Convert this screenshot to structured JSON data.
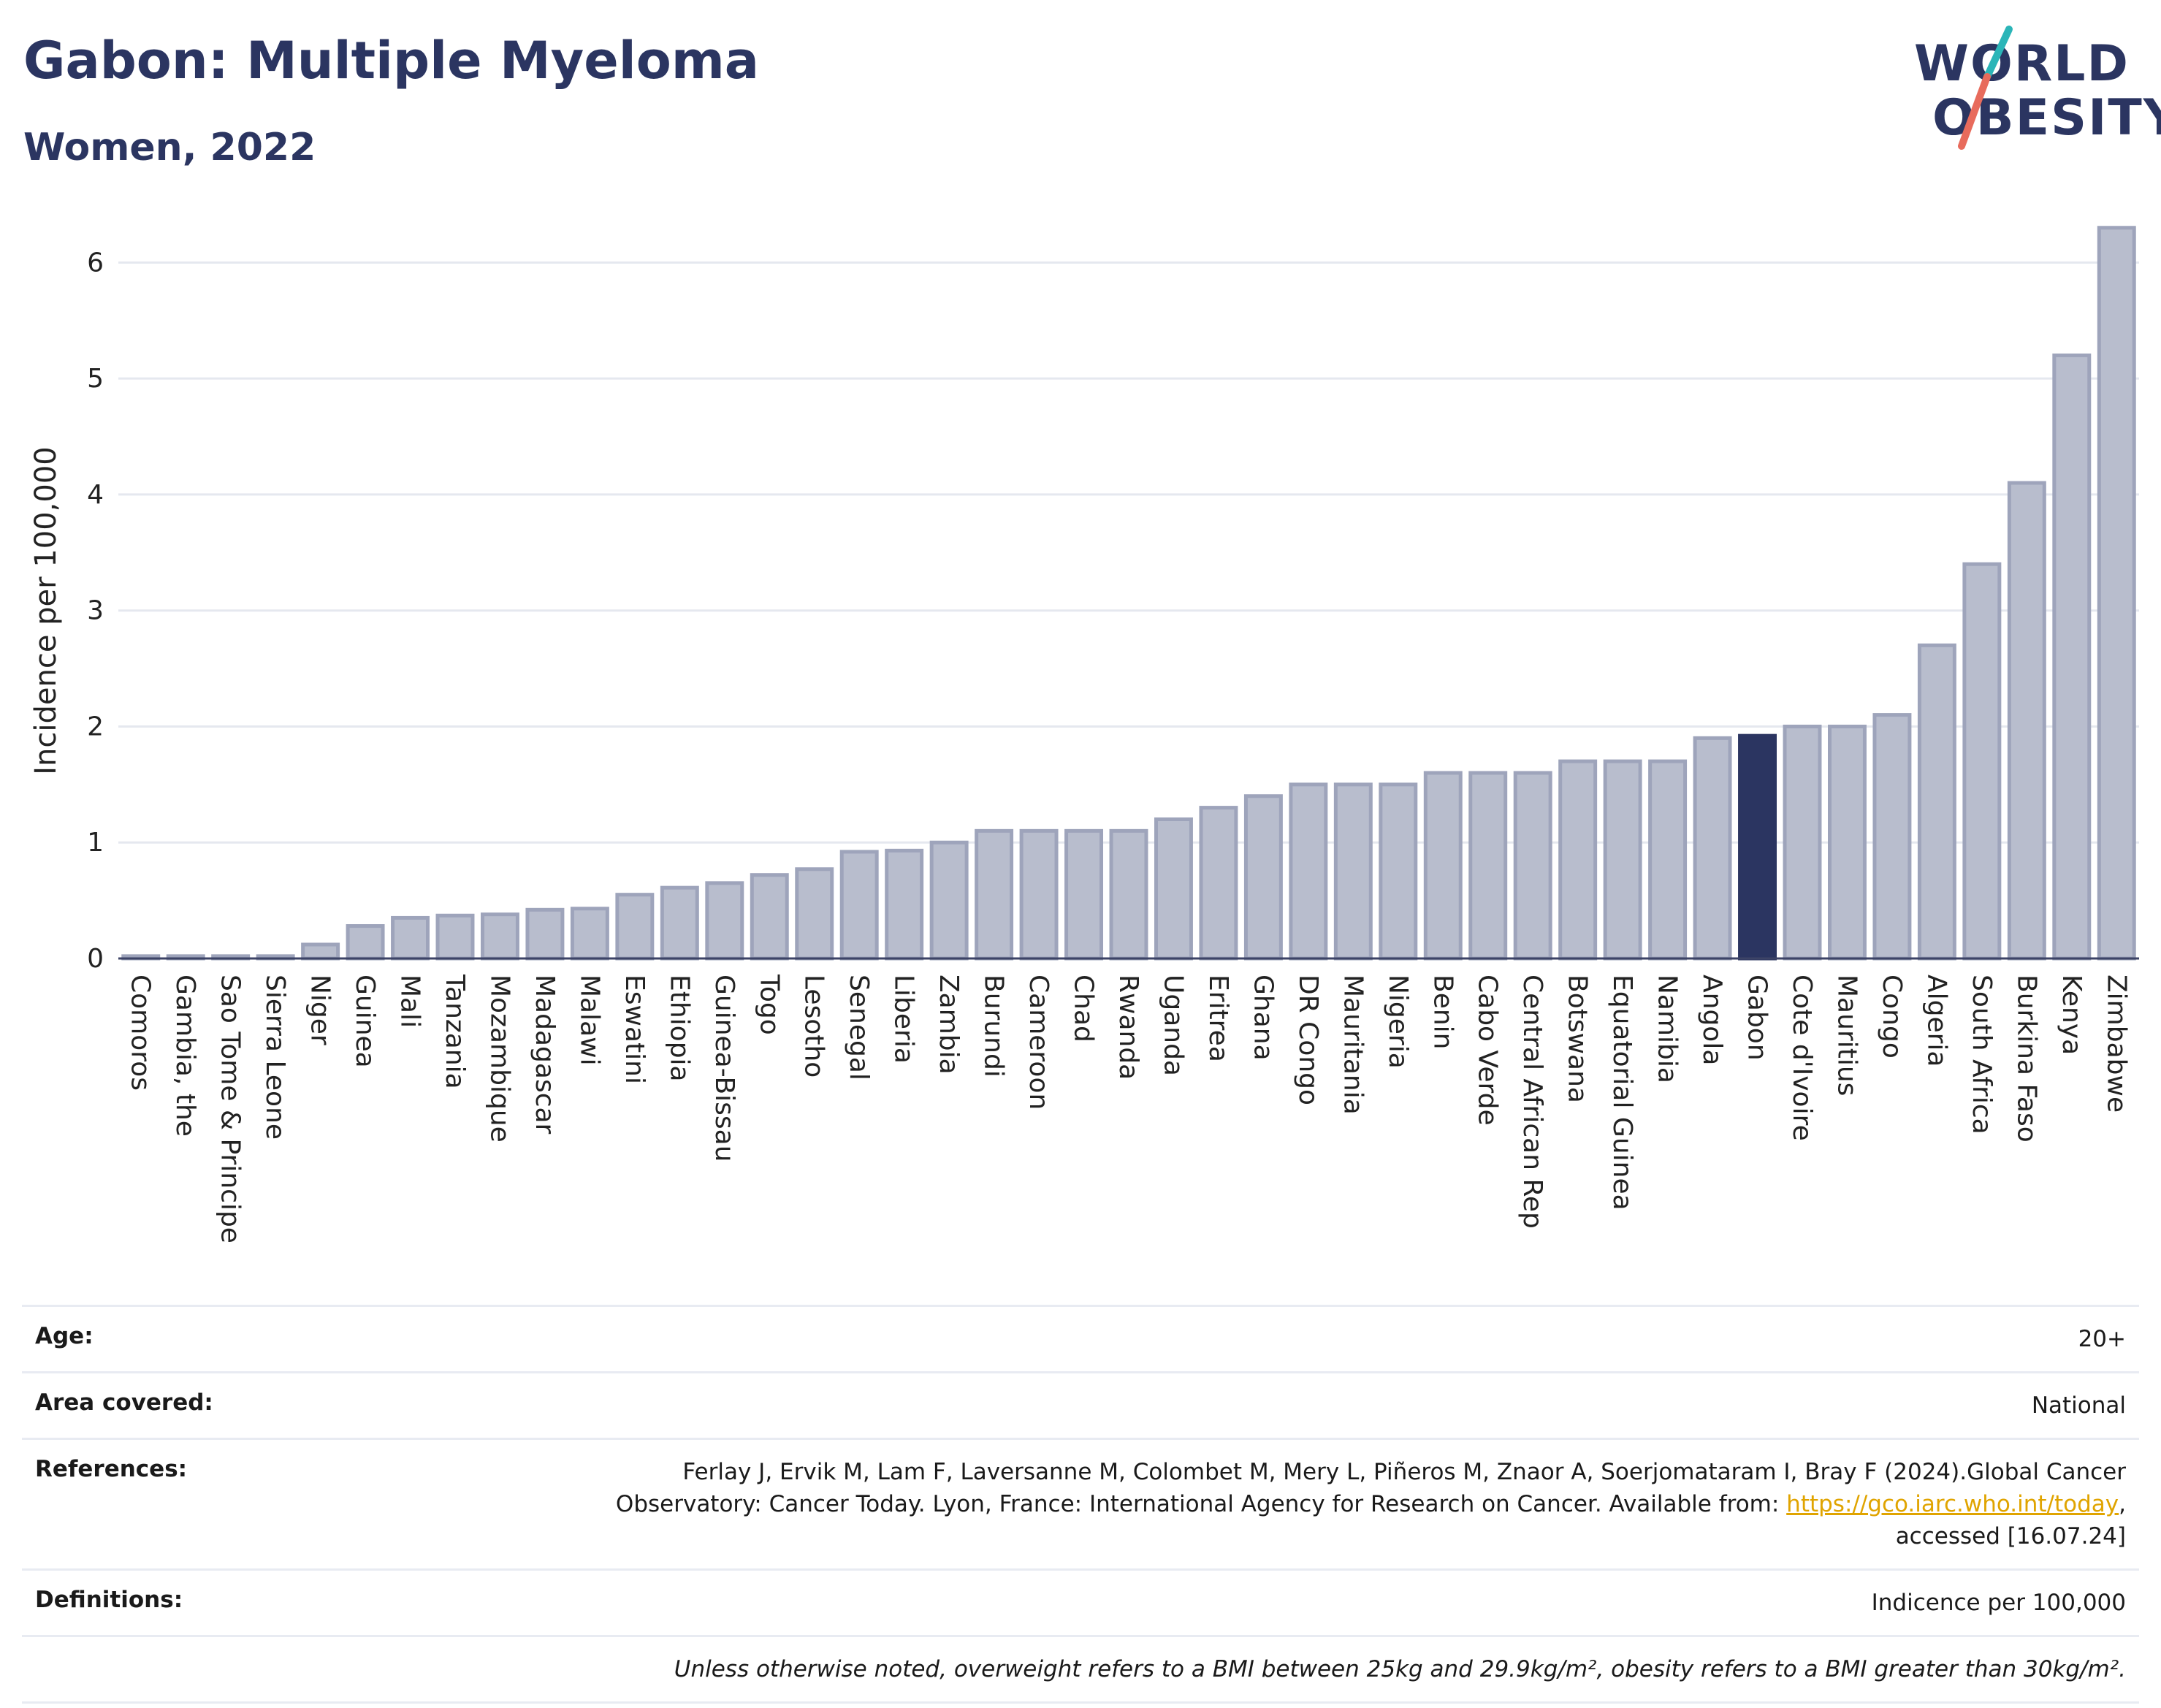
{
  "header": {
    "title": "Gabon: Multiple Myeloma",
    "subtitle": "Women, 2022"
  },
  "logo": {
    "line1": "WORLD",
    "line2": "OBESITY"
  },
  "colors": {
    "bar": "#b8bdcd",
    "bar_stroke": "#9ea4bb",
    "highlight": "#2b3561",
    "grid": "#e5e8ef",
    "axis": "#3c4366"
  },
  "chart_data": {
    "type": "bar",
    "ylabel": "Incidence per 100,000",
    "ylim": [
      0,
      6.5
    ],
    "yticks": [
      0,
      1,
      2,
      3,
      4,
      5,
      6
    ],
    "grid": true,
    "highlight": "Gabon",
    "categories": [
      "Comoros",
      "Gambia, the",
      "Sao Tome & Principe",
      "Sierra Leone",
      "Niger",
      "Guinea",
      "Mali",
      "Tanzania",
      "Mozambique",
      "Madagascar",
      "Malawi",
      "Eswatini",
      "Ethiopia",
      "Guinea-Bissau",
      "Togo",
      "Lesotho",
      "Senegal",
      "Liberia",
      "Zambia",
      "Burundi",
      "Cameroon",
      "Chad",
      "Rwanda",
      "Uganda",
      "Eritrea",
      "Ghana",
      "DR Congo",
      "Mauritania",
      "Nigeria",
      "Benin",
      "Cabo Verde",
      "Central African Rep",
      "Botswana",
      "Equatorial Guinea",
      "Namibia",
      "Angola",
      "Gabon",
      "Cote d'Ivoire",
      "Mauritius",
      "Congo",
      "Algeria",
      "South Africa",
      "Burkina Faso",
      "Kenya",
      "Zimbabwe"
    ],
    "values": [
      0.02,
      0.02,
      0.02,
      0.02,
      0.12,
      0.28,
      0.35,
      0.37,
      0.38,
      0.42,
      0.43,
      0.55,
      0.61,
      0.65,
      0.72,
      0.77,
      0.92,
      0.93,
      1.0,
      1.1,
      1.1,
      1.1,
      1.1,
      1.2,
      1.3,
      1.4,
      1.5,
      1.5,
      1.5,
      1.6,
      1.6,
      1.6,
      1.7,
      1.7,
      1.7,
      1.9,
      1.92,
      2.0,
      2.0,
      2.1,
      2.7,
      3.4,
      4.1,
      5.2,
      6.3
    ]
  },
  "info": {
    "age_label": "Age:",
    "age_value": "20+",
    "area_label": "Area covered:",
    "area_value": "National",
    "ref_label": "References:",
    "ref_text1": "Ferlay J, Ervik M, Lam F, Laversanne M, Colombet M, Mery L, Piñeros M, Znaor A, Soerjomataram I, Bray F (2024).Global Cancer",
    "ref_text2": "Observatory: Cancer Today. Lyon, France: International Agency for Research on Cancer. Available from: ",
    "ref_link": "https://gco.iarc.who.int/today",
    "ref_text3": "accessed [16.07.24]",
    "def_label": "Definitions:",
    "def_value": "Indicence per 100,000",
    "note": "Unless otherwise noted, overweight refers to a BMI between 25kg and 29.9kg/m², obesity refers to a BMI greater than 30kg/m²."
  }
}
